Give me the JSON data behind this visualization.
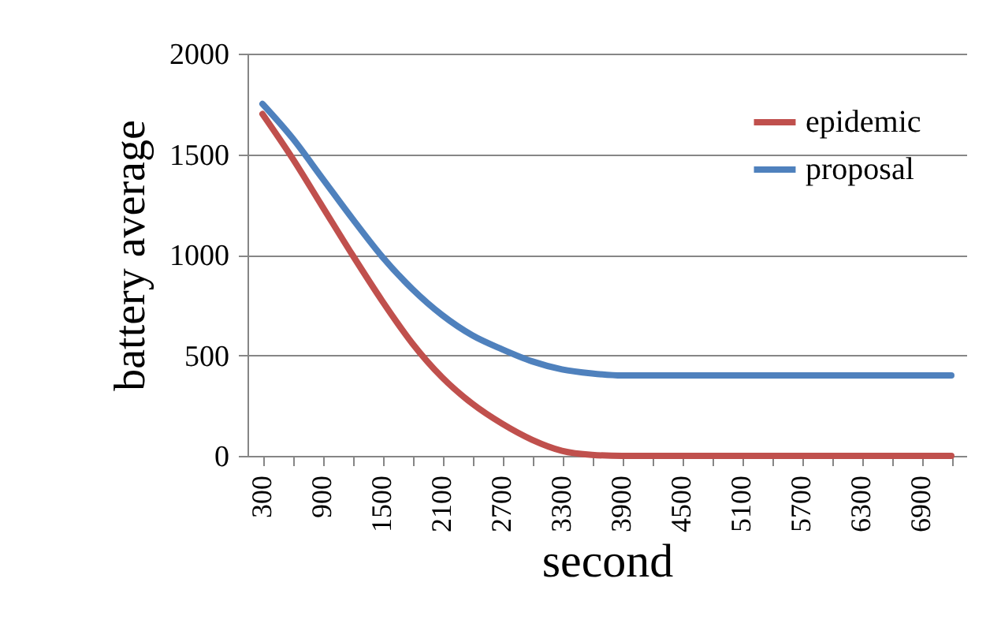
{
  "chart_data": {
    "type": "line",
    "xlabel": "second",
    "ylabel": "battery average",
    "categories": [
      "300",
      null,
      "900",
      null,
      "1500",
      null,
      "2100",
      null,
      "2700",
      null,
      "3300",
      null,
      "3900",
      null,
      "4500",
      null,
      "5100",
      null,
      "5700",
      null,
      "6300",
      null,
      "6900",
      null
    ],
    "series": [
      {
        "name": "epidemic",
        "color": "#c0504d",
        "values": [
          1700,
          1480,
          1240,
          1000,
          770,
          560,
          390,
          260,
          160,
          80,
          25,
          5,
          0,
          0,
          0,
          0,
          0,
          0,
          0,
          0,
          0,
          0,
          0,
          0
        ]
      },
      {
        "name": "proposal",
        "color": "#4f81bd",
        "values": [
          1750,
          1580,
          1380,
          1180,
          990,
          830,
          700,
          600,
          530,
          470,
          430,
          410,
          400,
          400,
          400,
          400,
          400,
          400,
          400,
          400,
          400,
          400,
          400,
          400
        ]
      }
    ],
    "ylim": [
      0,
      2000
    ],
    "yticks": [
      0,
      500,
      1000,
      1500,
      2000
    ],
    "grid": "y",
    "legend": "top right",
    "marker": "none",
    "line_style": "solid"
  }
}
